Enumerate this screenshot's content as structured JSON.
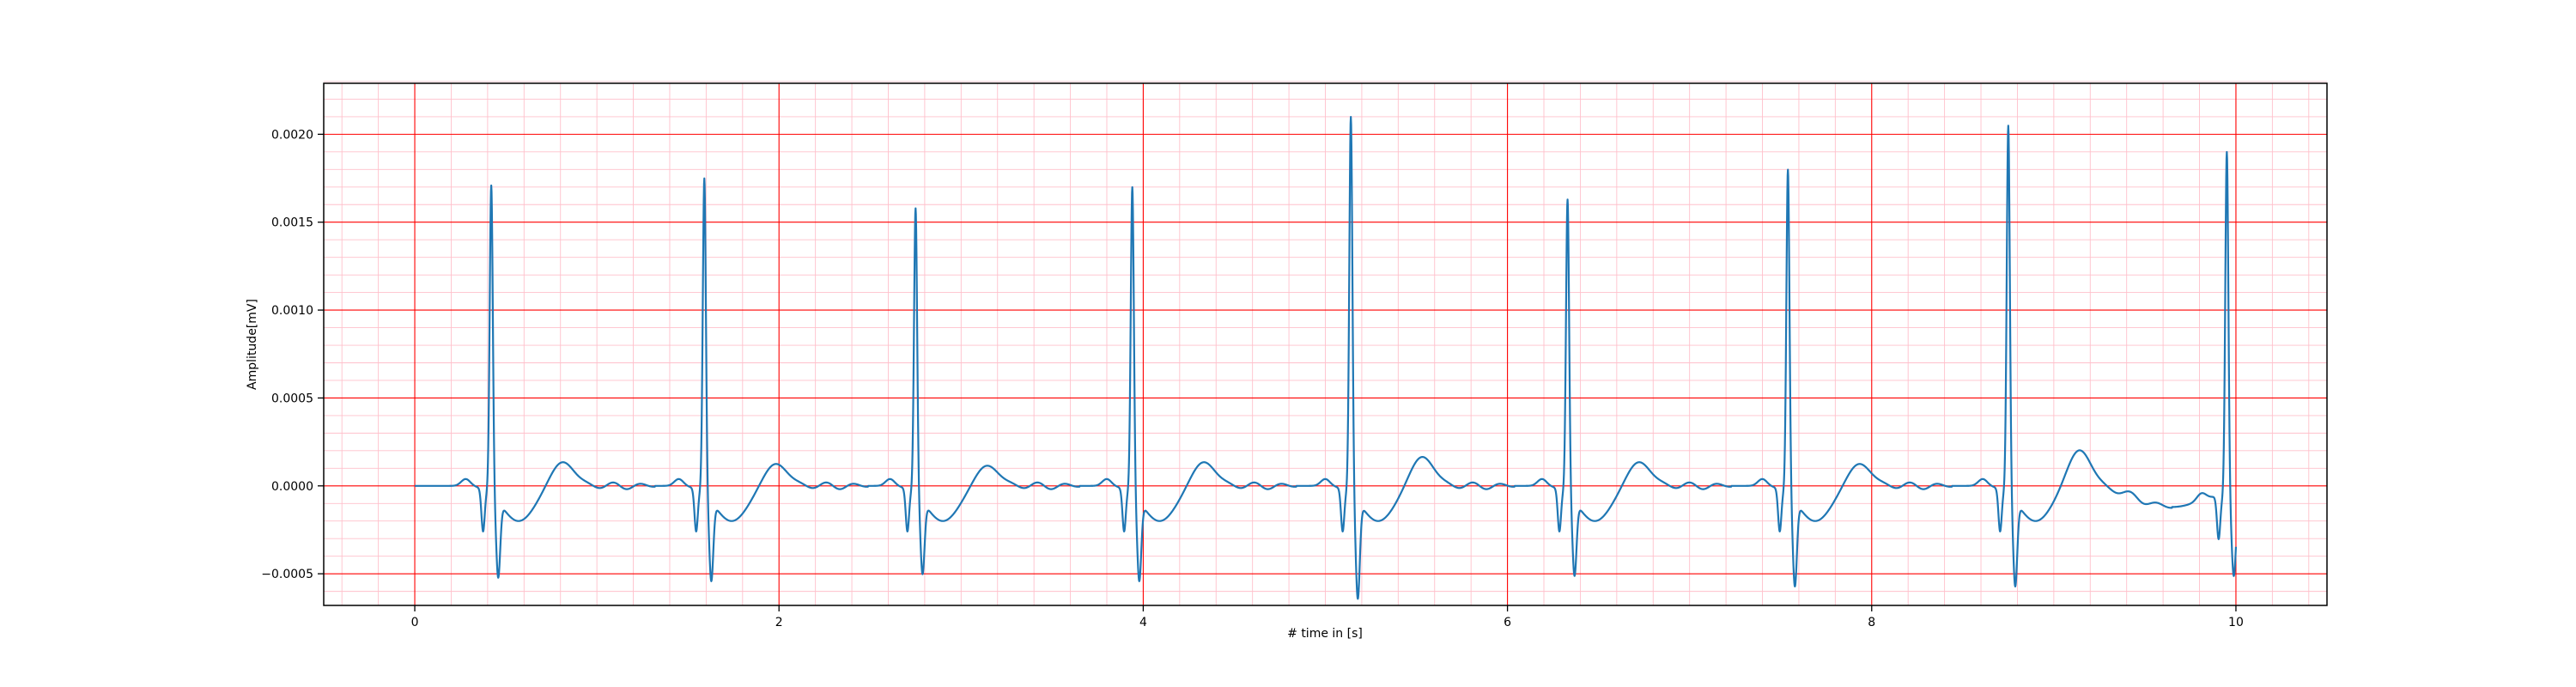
{
  "chart_data": {
    "type": "line",
    "title": "",
    "xlabel": "# time in [s]",
    "ylabel": "Amplitude[mV]",
    "xlim": [
      -0.5,
      10.5
    ],
    "ylim": [
      -0.00068,
      0.00229
    ],
    "xticks": [
      0,
      2,
      4,
      6,
      8,
      10
    ],
    "xtick_labels": [
      "0",
      "2",
      "4",
      "6",
      "8",
      "10"
    ],
    "yticks": [
      -0.0005,
      0.0,
      0.0005,
      0.001,
      0.0015,
      0.002
    ],
    "ytick_labels": [
      "−0.0005",
      "0.0000",
      "0.0005",
      "0.0010",
      "0.0015",
      "0.0020"
    ],
    "grid": {
      "major": true,
      "minor": true,
      "major_color": "#ff0000",
      "minor_color": "#ffc0cb"
    },
    "line_color": "#1f77b4",
    "series": [
      {
        "beats": [
          {
            "r_time": 0.42,
            "r_amp": 0.00176,
            "s_amp": -0.00043,
            "t_amp": 0.00014
          },
          {
            "r_time": 1.59,
            "r_amp": 0.0018,
            "s_amp": -0.00045,
            "t_amp": 0.00013
          },
          {
            "r_time": 2.75,
            "r_amp": 0.00163,
            "s_amp": -0.00041,
            "t_amp": 0.00012
          },
          {
            "r_time": 3.94,
            "r_amp": 0.00175,
            "s_amp": -0.00045,
            "t_amp": 0.00014
          },
          {
            "r_time": 5.14,
            "r_amp": 0.00215,
            "s_amp": -0.00055,
            "t_amp": 0.00017
          },
          {
            "r_time": 6.33,
            "r_amp": 0.00168,
            "s_amp": -0.00042,
            "t_amp": 0.00014
          },
          {
            "r_time": 7.54,
            "r_amp": 0.00185,
            "s_amp": -0.00048,
            "t_amp": 0.00013
          },
          {
            "r_time": 8.75,
            "r_amp": 0.0021,
            "s_amp": -0.00048,
            "t_amp": 0.00021
          },
          {
            "r_time": 9.95,
            "r_amp": 0.00198,
            "s_amp": -0.0004,
            "t_amp": 0.0
          }
        ],
        "x_start": 0.0,
        "x_end": 10.0,
        "values_approx": [
          [
            0.0,
            -2e-05
          ],
          [
            0.3,
            0.0
          ],
          [
            0.38,
            -0.00024
          ],
          [
            0.42,
            0.00176
          ],
          [
            0.46,
            -0.00043
          ],
          [
            0.6,
            -0.00012
          ],
          [
            0.8,
            0.00014
          ],
          [
            1.0,
            2e-05
          ],
          [
            1.5,
            0.0
          ],
          [
            1.59,
            0.0018
          ],
          [
            1.63,
            -0.00045
          ],
          [
            1.95,
            0.00013
          ],
          [
            2.2,
            0.0
          ],
          [
            2.75,
            0.00163
          ],
          [
            2.79,
            -0.00041
          ],
          [
            3.15,
            0.00012
          ],
          [
            3.94,
            0.00175
          ],
          [
            3.98,
            -0.00045
          ],
          [
            4.35,
            0.00014
          ],
          [
            5.14,
            0.00215
          ],
          [
            5.18,
            -0.00055
          ],
          [
            5.55,
            0.00017
          ],
          [
            6.33,
            0.00168
          ],
          [
            6.37,
            -0.00042
          ],
          [
            6.7,
            0.00014
          ],
          [
            7.54,
            0.00185
          ],
          [
            7.58,
            -0.00048
          ],
          [
            7.95,
            0.00013
          ],
          [
            8.75,
            0.0021
          ],
          [
            8.79,
            -0.00048
          ],
          [
            9.13,
            0.00021
          ],
          [
            9.7,
            -0.00018
          ],
          [
            9.95,
            0.00198
          ],
          [
            9.98,
            -0.0004
          ],
          [
            10.0,
            8e-05
          ]
        ]
      }
    ]
  }
}
